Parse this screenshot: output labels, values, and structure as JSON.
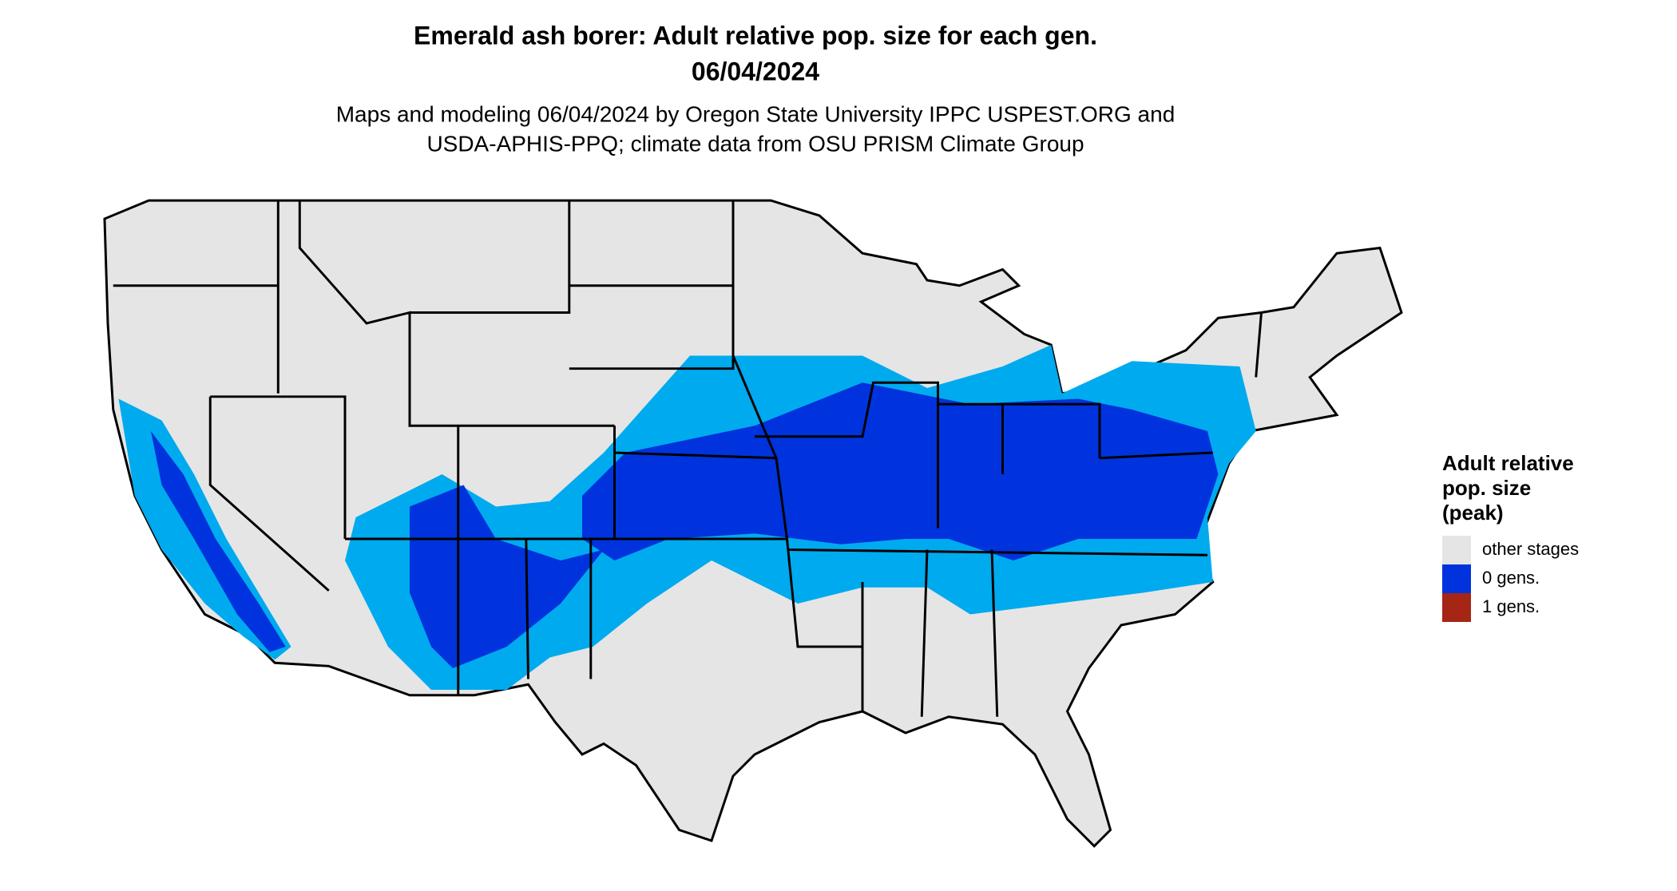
{
  "title": "Emerald ash borer: Adult relative pop. size for each gen.",
  "date": "06/04/2024",
  "subtitle": [
    "Maps and modeling 06/04/2024 by Oregon State University IPPC USPEST.ORG and",
    "USDA-APHIS-PPQ; climate data from OSU PRISM Climate Group"
  ],
  "legend": {
    "title": [
      "Adult relative",
      "pop. size",
      "(peak)"
    ],
    "items": [
      {
        "label": "other stages",
        "color": "#e5e5e5"
      },
      {
        "label": "0 gens.",
        "color": "#0033dd"
      },
      {
        "label": "1 gens.",
        "color": "#a52614"
      }
    ]
  }
}
